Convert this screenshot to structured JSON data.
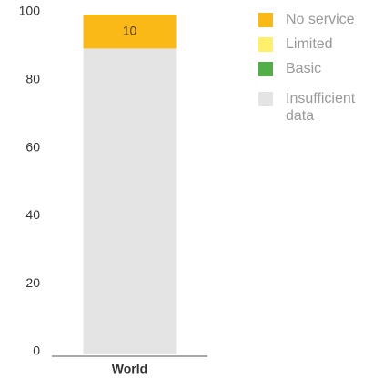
{
  "chart_data": {
    "type": "stacked_bar",
    "categories": [
      "World"
    ],
    "series": [
      {
        "name": "No service",
        "color": "#fbb917",
        "values": [
          10
        ],
        "labels": true
      },
      {
        "name": "Limited",
        "color": "#fff06c",
        "values": [
          0
        ]
      },
      {
        "name": "Basic",
        "color": "#52ae47",
        "values": [
          0
        ]
      },
      {
        "name": "Insufficient data",
        "color": "#e4e4e4",
        "values": [
          90
        ]
      }
    ],
    "ylim": [
      0,
      100
    ],
    "yticks": [
      0,
      20,
      40,
      60,
      80,
      100
    ],
    "grid": false,
    "legend": "right"
  }
}
